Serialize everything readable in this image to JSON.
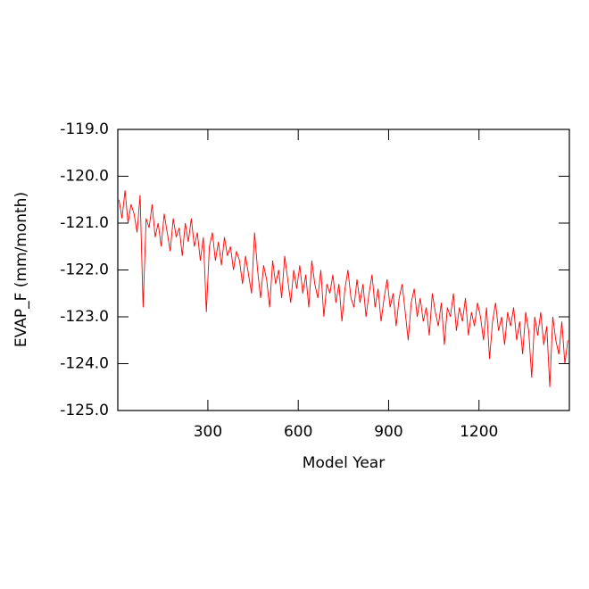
{
  "chart_data": {
    "type": "line",
    "xlabel": "Model Year",
    "ylabel": "EVAP_F (mm/month)",
    "xlim": [
      1,
      1500
    ],
    "ylim": [
      -125,
      -119
    ],
    "xticks": [
      300,
      600,
      900,
      1200
    ],
    "yticks": [
      {
        "value": -125,
        "label": "-125.0"
      },
      {
        "value": -124,
        "label": "-124.0"
      },
      {
        "value": -123,
        "label": "-123.0"
      },
      {
        "value": -122,
        "label": "-122.0"
      },
      {
        "value": -121,
        "label": "-121.0"
      },
      {
        "value": -120,
        "label": "-120.0"
      },
      {
        "value": -119,
        "label": "-119.0"
      }
    ],
    "x": [
      5,
      15,
      25,
      35,
      45,
      55,
      65,
      75,
      85,
      95,
      105,
      115,
      125,
      135,
      145,
      155,
      165,
      175,
      185,
      195,
      205,
      215,
      225,
      235,
      245,
      255,
      265,
      275,
      285,
      295,
      305,
      315,
      325,
      335,
      345,
      355,
      365,
      375,
      385,
      395,
      405,
      415,
      425,
      435,
      445,
      455,
      465,
      475,
      485,
      495,
      505,
      515,
      525,
      535,
      545,
      555,
      565,
      575,
      585,
      595,
      605,
      615,
      625,
      635,
      645,
      655,
      665,
      675,
      685,
      695,
      705,
      715,
      725,
      735,
      745,
      755,
      765,
      775,
      785,
      795,
      805,
      815,
      825,
      835,
      845,
      855,
      865,
      875,
      885,
      895,
      905,
      915,
      925,
      935,
      945,
      955,
      965,
      975,
      985,
      995,
      1005,
      1015,
      1025,
      1035,
      1045,
      1055,
      1065,
      1075,
      1085,
      1095,
      1105,
      1115,
      1125,
      1135,
      1145,
      1155,
      1165,
      1175,
      1185,
      1195,
      1205,
      1215,
      1225,
      1235,
      1245,
      1255,
      1265,
      1275,
      1285,
      1295,
      1305,
      1315,
      1325,
      1335,
      1345,
      1355,
      1365,
      1375,
      1385,
      1395,
      1405,
      1415,
      1425,
      1435,
      1445,
      1455,
      1465,
      1475,
      1485,
      1495
    ],
    "series": [
      {
        "color": "#ff0000",
        "values": [
          -120.5,
          -120.9,
          -120.3,
          -121.0,
          -120.6,
          -120.8,
          -121.2,
          -120.4,
          -122.8,
          -120.9,
          -121.1,
          -120.6,
          -121.3,
          -121.0,
          -121.5,
          -120.8,
          -121.2,
          -121.6,
          -120.9,
          -121.3,
          -121.1,
          -121.7,
          -121.0,
          -121.4,
          -120.9,
          -121.5,
          -121.2,
          -121.8,
          -121.3,
          -122.9,
          -121.5,
          -121.2,
          -121.8,
          -121.4,
          -121.9,
          -121.3,
          -121.7,
          -121.5,
          -122.0,
          -121.6,
          -121.8,
          -122.3,
          -121.7,
          -122.1,
          -122.5,
          -121.2,
          -122.0,
          -122.6,
          -121.9,
          -122.2,
          -122.8,
          -121.8,
          -122.3,
          -122.0,
          -122.6,
          -121.7,
          -122.2,
          -122.7,
          -122.0,
          -122.4,
          -121.9,
          -122.5,
          -122.1,
          -122.8,
          -121.8,
          -122.3,
          -122.6,
          -122.0,
          -123.0,
          -122.3,
          -122.5,
          -122.1,
          -122.7,
          -122.3,
          -123.1,
          -122.4,
          -122.0,
          -122.6,
          -122.8,
          -122.2,
          -122.7,
          -122.3,
          -123.0,
          -122.5,
          -122.1,
          -122.8,
          -122.4,
          -123.1,
          -122.6,
          -122.2,
          -122.8,
          -122.5,
          -123.2,
          -122.6,
          -122.3,
          -122.9,
          -123.5,
          -122.7,
          -122.4,
          -123.0,
          -122.6,
          -123.1,
          -122.8,
          -123.4,
          -122.5,
          -122.9,
          -123.2,
          -122.7,
          -123.6,
          -122.8,
          -123.0,
          -122.5,
          -123.3,
          -122.8,
          -123.1,
          -122.6,
          -123.4,
          -122.9,
          -123.2,
          -122.7,
          -123.0,
          -123.5,
          -122.8,
          -123.9,
          -123.1,
          -122.7,
          -123.3,
          -123.0,
          -123.6,
          -122.9,
          -123.2,
          -122.8,
          -123.5,
          -123.1,
          -123.8,
          -122.9,
          -123.3,
          -124.3,
          -123.0,
          -123.4,
          -122.9,
          -123.6,
          -123.2,
          -124.5,
          -123.0,
          -123.5,
          -123.8,
          -123.1,
          -124.0,
          -123.5
        ]
      }
    ]
  }
}
